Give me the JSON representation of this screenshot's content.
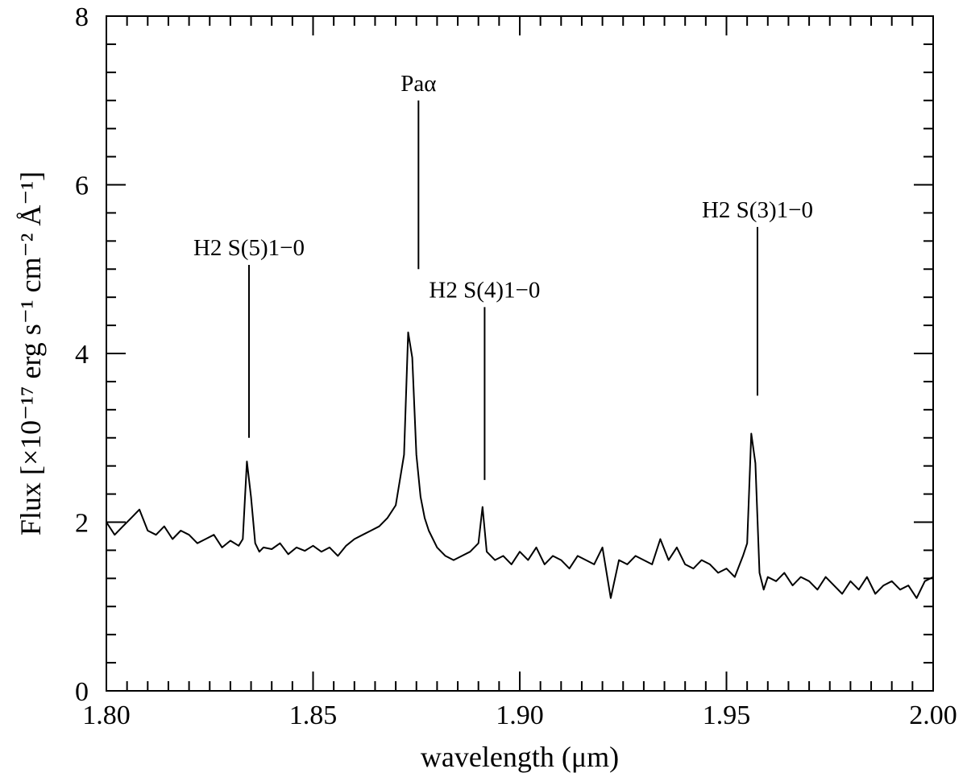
{
  "chart_data": {
    "type": "line",
    "title": "",
    "xlabel": "wavelength  (μm)",
    "ylabel": "Flux [×10⁻¹⁷ erg s⁻¹ cm⁻² Å⁻¹]",
    "xlim": [
      1.8,
      2.0
    ],
    "ylim": [
      0,
      8
    ],
    "x_ticks": [
      1.8,
      1.85,
      1.9,
      1.95,
      2.0
    ],
    "x_tick_labels": [
      "1.80",
      "1.85",
      "1.90",
      "1.95",
      "2.00"
    ],
    "x_minor_step": 0.005,
    "y_ticks": [
      0,
      2,
      4,
      6,
      8
    ],
    "y_tick_labels": [
      "0",
      "2",
      "4",
      "6",
      "8"
    ],
    "y_minor_step": 0.333333,
    "grid": false,
    "legend": "none",
    "line_color": "#000000",
    "series": [
      {
        "x": [
          1.8,
          1.802,
          1.804,
          1.806,
          1.808,
          1.81,
          1.812,
          1.814,
          1.816,
          1.818,
          1.82,
          1.822,
          1.824,
          1.826,
          1.828,
          1.83,
          1.832,
          1.833,
          1.834,
          1.835,
          1.836,
          1.837,
          1.838,
          1.84,
          1.842,
          1.844,
          1.846,
          1.848,
          1.85,
          1.852,
          1.854,
          1.856,
          1.858,
          1.86,
          1.862,
          1.864,
          1.866,
          1.868,
          1.87,
          1.872,
          1.873,
          1.874,
          1.875,
          1.876,
          1.877,
          1.878,
          1.88,
          1.882,
          1.884,
          1.886,
          1.888,
          1.89,
          1.891,
          1.892,
          1.894,
          1.896,
          1.898,
          1.9,
          1.902,
          1.904,
          1.906,
          1.908,
          1.91,
          1.912,
          1.914,
          1.916,
          1.918,
          1.92,
          1.922,
          1.924,
          1.926,
          1.928,
          1.93,
          1.932,
          1.934,
          1.936,
          1.938,
          1.94,
          1.942,
          1.944,
          1.946,
          1.948,
          1.95,
          1.952,
          1.954,
          1.955,
          1.956,
          1.957,
          1.958,
          1.959,
          1.96,
          1.962,
          1.964,
          1.966,
          1.968,
          1.97,
          1.972,
          1.974,
          1.976,
          1.978,
          1.98,
          1.982,
          1.984,
          1.986,
          1.988,
          1.99,
          1.992,
          1.994,
          1.996,
          1.998,
          2.0
        ],
        "y": [
          2.0,
          1.85,
          1.95,
          2.05,
          2.15,
          1.9,
          1.85,
          1.95,
          1.8,
          1.9,
          1.85,
          1.75,
          1.8,
          1.85,
          1.7,
          1.78,
          1.72,
          1.8,
          2.72,
          2.3,
          1.75,
          1.65,
          1.7,
          1.68,
          1.75,
          1.62,
          1.7,
          1.66,
          1.72,
          1.65,
          1.7,
          1.6,
          1.72,
          1.8,
          1.85,
          1.9,
          1.95,
          2.05,
          2.2,
          2.8,
          4.25,
          3.95,
          2.8,
          2.3,
          2.05,
          1.9,
          1.7,
          1.6,
          1.55,
          1.6,
          1.65,
          1.75,
          2.18,
          1.65,
          1.55,
          1.6,
          1.5,
          1.65,
          1.55,
          1.7,
          1.5,
          1.6,
          1.55,
          1.45,
          1.6,
          1.55,
          1.5,
          1.7,
          1.1,
          1.55,
          1.5,
          1.6,
          1.55,
          1.5,
          1.8,
          1.55,
          1.7,
          1.5,
          1.45,
          1.55,
          1.5,
          1.4,
          1.45,
          1.35,
          1.6,
          1.75,
          3.05,
          2.7,
          1.4,
          1.2,
          1.35,
          1.3,
          1.4,
          1.25,
          1.35,
          1.3,
          1.2,
          1.35,
          1.25,
          1.15,
          1.3,
          1.2,
          1.35,
          1.15,
          1.25,
          1.3,
          1.2,
          1.25,
          1.1,
          1.3,
          1.35
        ]
      }
    ],
    "annotations": [
      {
        "label": "H2 S(5)1−0",
        "x": 1.8345,
        "y_top": 5.05,
        "y_bottom": 3.0
      },
      {
        "label": "Paα",
        "x": 1.8755,
        "y_top": 7.0,
        "y_bottom": 5.0
      },
      {
        "label": "H2 S(4)1−0",
        "x": 1.8915,
        "y_top": 4.55,
        "y_bottom": 2.5
      },
      {
        "label": "H2 S(3)1−0",
        "x": 1.9575,
        "y_top": 5.5,
        "y_bottom": 3.5
      }
    ]
  }
}
